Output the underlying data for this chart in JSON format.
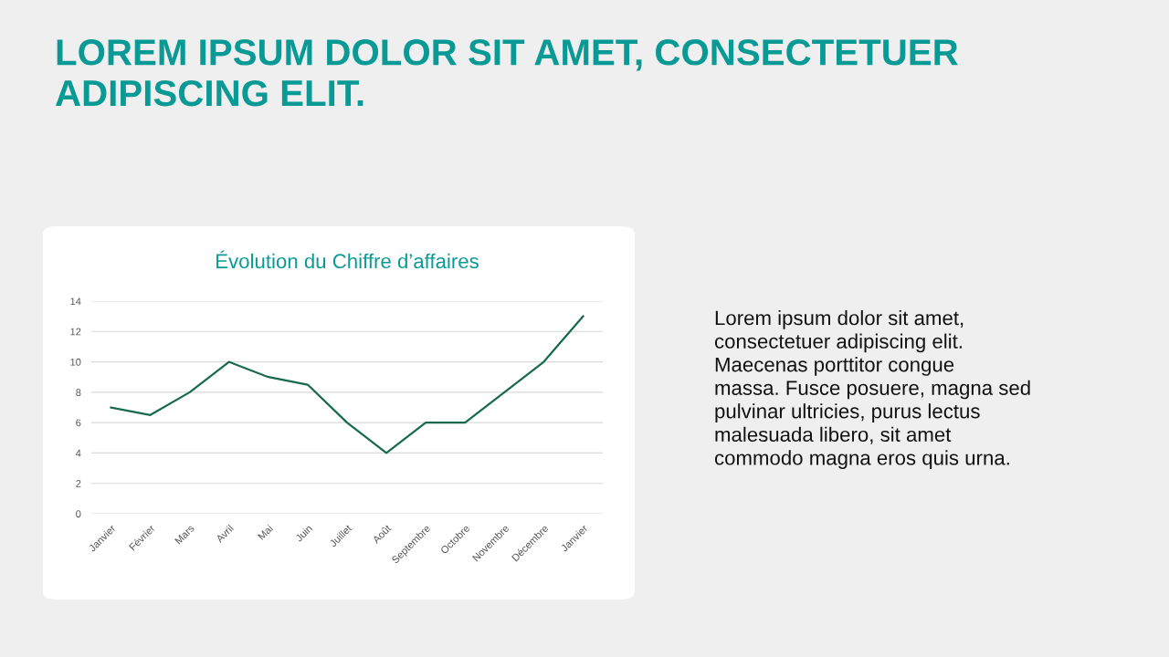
{
  "chart_data": {
    "type": "line",
    "title": "Évolution du Chiffre d’affaires",
    "annotations": [
      "LOREM IPSUM DOLOR SIT AMET, CONSECTETUER\nADIPISCING ELIT.",
      "Lorem ipsum dolor sit amet,\nconsectetuer adipiscing elit.\nMaecenas porttitor congue\nmassa. Fusce posuere, magna sed\npulvinar ultricies, purus lectus\nmalesuada libero, sit amet\ncommodo magna eros quis urna."
    ],
    "categories": [
      "Janvier",
      "Février",
      "Mars",
      "Avril",
      "Mai",
      "Juin",
      "Juillet",
      "Août",
      "Septembre",
      "Octobre",
      "Novembre",
      "Décembre",
      "Janvier"
    ],
    "series": [
      {
        "color": "#17694f",
        "values": [
          7,
          6.5,
          8,
          10,
          9,
          8.5,
          6,
          4,
          6,
          6,
          8,
          10,
          13
        ]
      }
    ],
    "ylim": [
      0,
      14
    ],
    "yticks": [
      0,
      2,
      4,
      6,
      8,
      10,
      12,
      14
    ],
    "grid": "y",
    "legend": false,
    "marker": "none",
    "line_style": "solid"
  }
}
